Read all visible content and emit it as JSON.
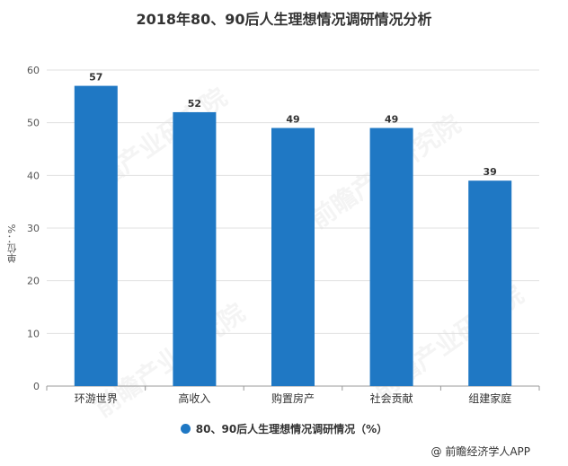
{
  "title": "2018年80、90后人生理想情况调研情况分析",
  "ylabel": "单位：%",
  "legend_label": "80、90后人生理想情况调研情况（%）",
  "source": "@ 前瞻经济学人APP",
  "watermark": "前瞻产业研究院",
  "colors": {
    "bar": "#1f78c4",
    "grid": "#e0e0e0",
    "axis": "#999999",
    "text": "#333333"
  },
  "chart_data": {
    "type": "bar",
    "title": "2018年80、90后人生理想情况调研情况分析",
    "ylabel": "单位：%",
    "xlabel": "",
    "categories": [
      "环游世界",
      "高收入",
      "购置房产",
      "社会贡献",
      "组建家庭"
    ],
    "series": [
      {
        "name": "80、90后人生理想情况调研情况（%）",
        "values": [
          57,
          52,
          49,
          49,
          39
        ]
      }
    ],
    "ylim": [
      0,
      60
    ],
    "yticks": [
      0,
      10,
      20,
      30,
      40,
      50,
      60
    ],
    "grid": true,
    "legend": "bottom",
    "data_labels": true
  }
}
